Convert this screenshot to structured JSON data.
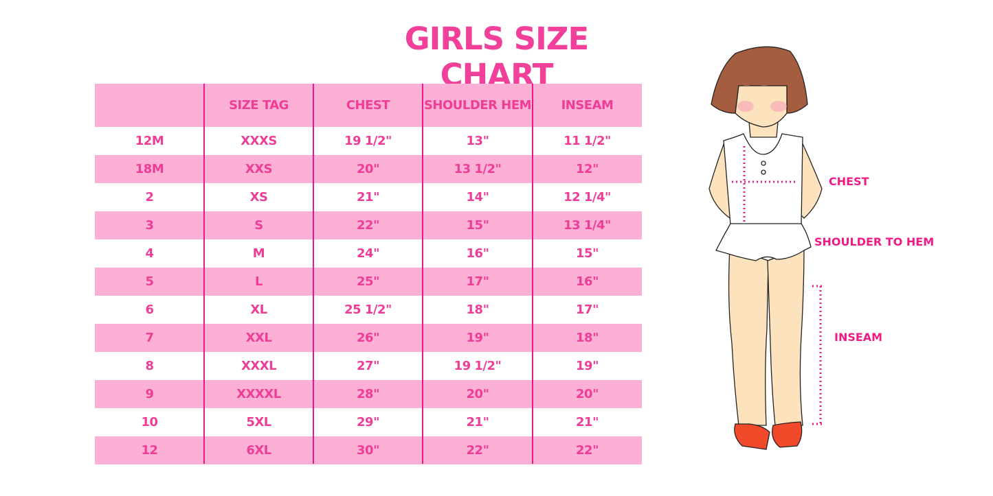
{
  "title": "GIRLS SIZE CHART",
  "colors": {
    "accent": "#ee3d96",
    "row_pink": "#fdb0d5",
    "divider": "#e5198d"
  },
  "table": {
    "headers": [
      "",
      "SIZE TAG",
      "CHEST",
      "SHOULDER HEM",
      "INSEAM"
    ],
    "rows": [
      [
        "12M",
        "XXXS",
        "19 1/2\"",
        "13\"",
        "11 1/2\""
      ],
      [
        "18M",
        "XXS",
        "20\"",
        "13 1/2\"",
        "12\""
      ],
      [
        "2",
        "XS",
        "21\"",
        "14\"",
        "12 1/4\""
      ],
      [
        "3",
        "S",
        "22\"",
        "15\"",
        "13 1/4\""
      ],
      [
        "4",
        "M",
        "24\"",
        "16\"",
        "15\""
      ],
      [
        "5",
        "L",
        "25\"",
        "17\"",
        "16\""
      ],
      [
        "6",
        "XL",
        "25 1/2\"",
        "18\"",
        "17\""
      ],
      [
        "7",
        "XXL",
        "26\"",
        "19\"",
        "18\""
      ],
      [
        "8",
        "XXXL",
        "27\"",
        "19 1/2\"",
        "19\""
      ],
      [
        "9",
        "XXXXL",
        "28\"",
        "20\"",
        "20\""
      ],
      [
        "10",
        "5XL",
        "29\"",
        "21\"",
        "21\""
      ],
      [
        "12",
        "6XL",
        "30\"",
        "22\"",
        "22\""
      ]
    ]
  },
  "illustration": {
    "labels": {
      "chest": "CHEST",
      "shoulder_to_hem": "SHOULDER TO HEM",
      "inseam": "INSEAM"
    }
  }
}
